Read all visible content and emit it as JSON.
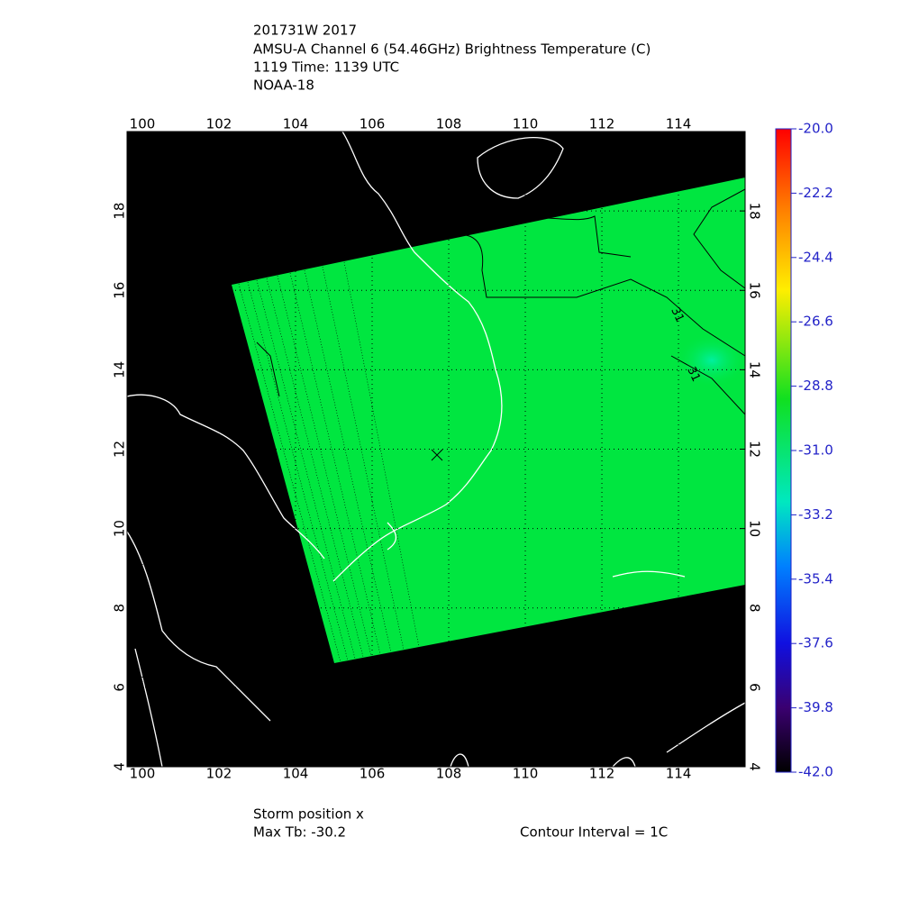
{
  "header": {
    "title_lines": [
      "201731W 2017",
      "AMSU-A Channel 6 (54.46GHz) Brightness Temperature (C)",
      "1119 Time: 1139 UTC",
      "NOAA-18"
    ]
  },
  "map": {
    "lon_range": [
      99.6,
      115.74
    ],
    "lat_range": [
      4,
      20
    ],
    "lon_ticks": [
      100,
      102,
      104,
      106,
      108,
      110,
      112,
      114
    ],
    "lat_ticks": [
      4,
      6,
      8,
      10,
      12,
      14,
      16,
      18
    ],
    "contour_labels": [
      "31",
      "31"
    ]
  },
  "colorbar": {
    "range": [
      -20,
      -42
    ],
    "ticks": [
      {
        "value": -20,
        "label": "-20.0"
      },
      {
        "value": -22.2,
        "label": "-22.2"
      },
      {
        "value": -24.4,
        "label": "-24.4"
      },
      {
        "value": -26.6,
        "label": "-26.6"
      },
      {
        "value": -28.8,
        "label": "-28.8"
      },
      {
        "value": -31,
        "label": "-31.0"
      },
      {
        "value": -33.2,
        "label": "-33.2"
      },
      {
        "value": -35.4,
        "label": "-35.4"
      },
      {
        "value": -37.6,
        "label": "-37.6"
      },
      {
        "value": -39.8,
        "label": "-39.8"
      },
      {
        "value": -42,
        "label": "-42.0"
      }
    ]
  },
  "footer": {
    "storm_position": "Storm position x",
    "max_tb": "Max Tb: -30.2",
    "contour_interval": "Contour Interval = 1C"
  }
}
